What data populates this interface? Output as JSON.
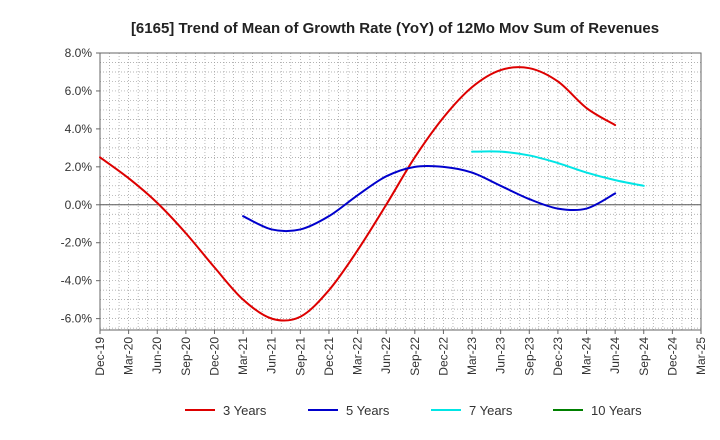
{
  "chart_data": {
    "type": "line",
    "title": "[6165]  Trend of Mean of Growth Rate (YoY) of 12Mo Mov Sum of Revenues",
    "xlabel": "",
    "ylabel": "",
    "ylim": [
      -6.6,
      8.0
    ],
    "y_ticks": [
      8.0,
      6.0,
      4.0,
      2.0,
      0.0,
      -2.0,
      -4.0,
      -6.0
    ],
    "y_tick_labels": [
      "8.0%",
      "6.0%",
      "4.0%",
      "2.0%",
      "0.0%",
      "-2.0%",
      "-4.0%",
      "-6.0%"
    ],
    "x_tick_labels": [
      "Dec-19",
      "Mar-20",
      "Jun-20",
      "Sep-20",
      "Dec-20",
      "Mar-21",
      "Jun-21",
      "Sep-21",
      "Dec-21",
      "Mar-22",
      "Jun-22",
      "Sep-22",
      "Dec-22",
      "Mar-23",
      "Jun-23",
      "Sep-23",
      "Dec-23",
      "Mar-24",
      "Jun-24",
      "Sep-24",
      "Dec-24",
      "Mar-25"
    ],
    "grid": true,
    "legend_position": "bottom",
    "series": [
      {
        "name": "3 Years",
        "color": "#dd0000",
        "start_index": 0,
        "values": [
          2.5,
          1.4,
          0.1,
          -1.5,
          -3.3,
          -5.0,
          -6.0,
          -5.9,
          -4.5,
          -2.4,
          0.0,
          2.5,
          4.6,
          6.2,
          7.1,
          7.2,
          6.5,
          5.1,
          4.2
        ]
      },
      {
        "name": "5 Years",
        "color": "#0000cc",
        "start_index": 5,
        "values": [
          -0.6,
          -1.3,
          -1.3,
          -0.6,
          0.5,
          1.5,
          2.0,
          2.0,
          1.7,
          1.0,
          0.3,
          -0.2,
          -0.2,
          0.6
        ]
      },
      {
        "name": "7 Years",
        "color": "#00e5e5",
        "start_index": 13,
        "values": [
          2.8,
          2.8,
          2.6,
          2.2,
          1.7,
          1.3,
          1.0
        ]
      },
      {
        "name": "10 Years",
        "color": "#008000",
        "start_index": 0,
        "values": []
      }
    ]
  }
}
